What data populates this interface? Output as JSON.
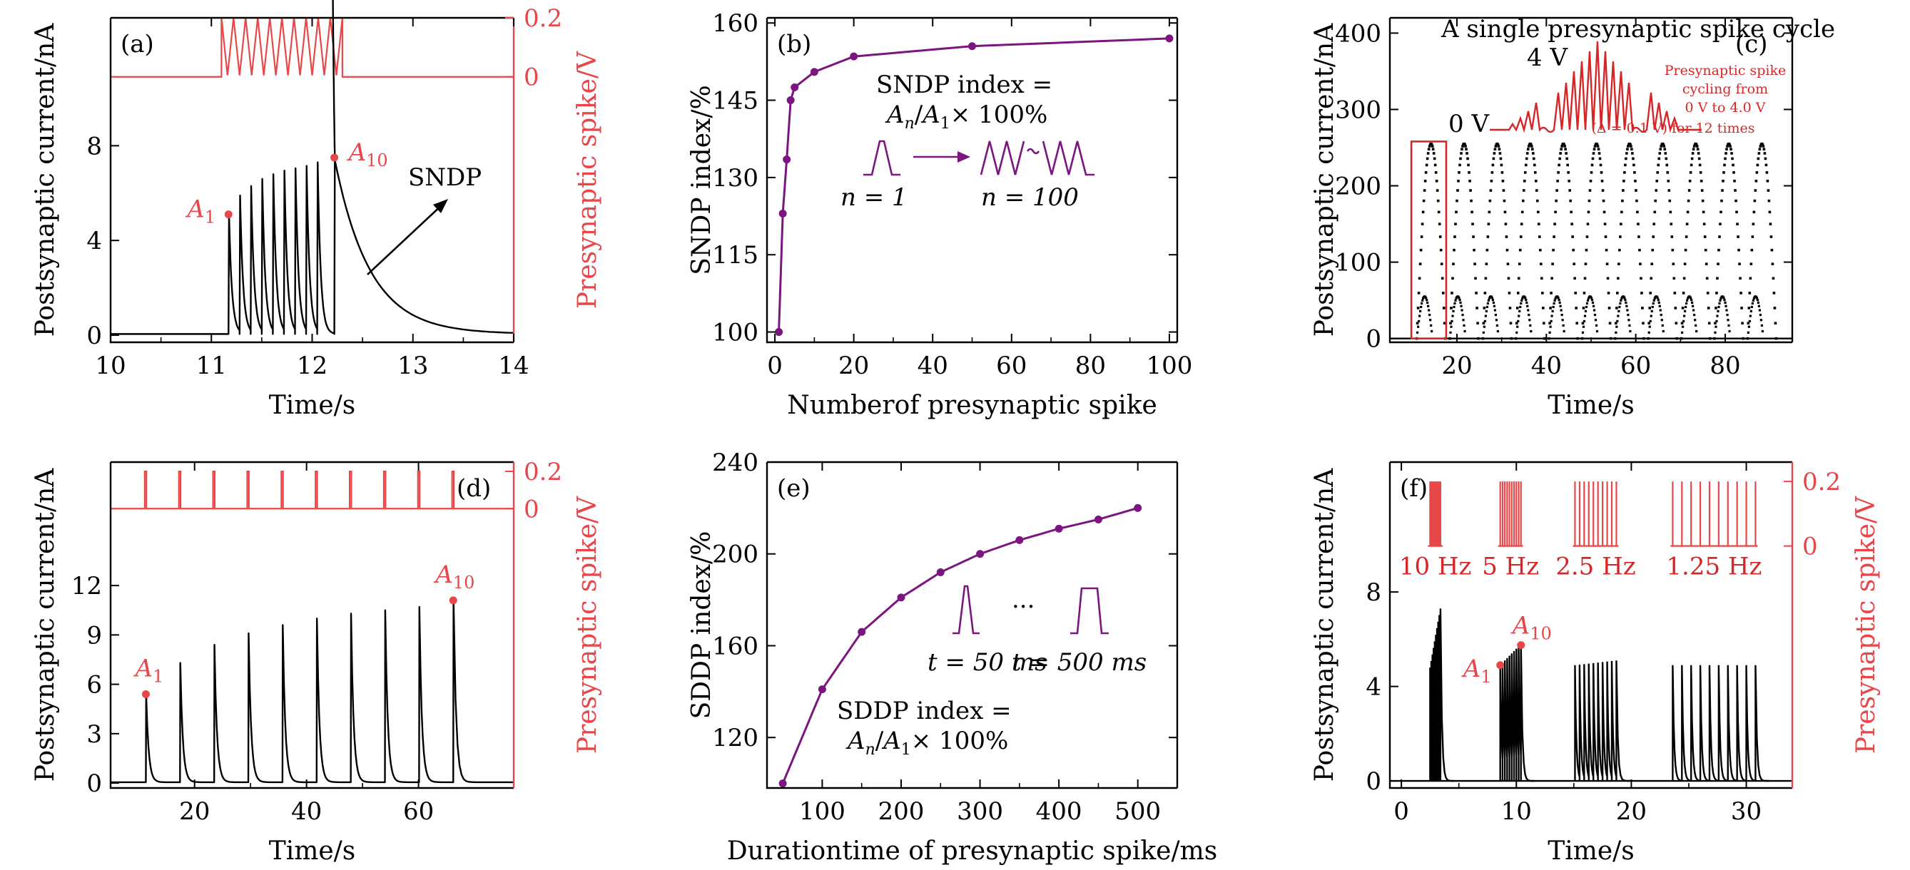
{
  "colors": {
    "black": "#000000",
    "red": "#e8474a",
    "annotation_red": "#d62728",
    "purple": "#7b1580"
  },
  "chart_data": [
    {
      "id": "a",
      "type": "line",
      "panel_label": "(a)",
      "xlabel": "Time/s",
      "ylabel": "Postsynaptic current/nA",
      "y2label": "Presynaptic spike/V",
      "xlim": [
        10,
        14
      ],
      "ylim": [
        -0.3,
        13.4
      ],
      "y2lim": [
        -0.9,
        0.2
      ],
      "xticks": [
        "10",
        "11",
        "12",
        "13",
        "14"
      ],
      "yticks": [
        "0",
        "4",
        "8"
      ],
      "y2ticks": [
        "0",
        "0.2"
      ],
      "spike_times": [
        11.17,
        11.28,
        11.39,
        11.5,
        11.61,
        11.72,
        11.83,
        11.94,
        12.05,
        12.22
      ],
      "peak_values": [
        5.1,
        5.9,
        6.3,
        6.6,
        6.8,
        6.95,
        7.05,
        7.15,
        7.3,
        7.5
      ],
      "pulse_amplitude_V": 0.2,
      "pulse_window_s": [
        11.1,
        12.3
      ],
      "points": [
        {
          "label": "A",
          "sub": "1",
          "x": 11.17,
          "y": 5.1
        },
        {
          "label": "A",
          "sub": "10",
          "x": 12.22,
          "y": 7.5
        }
      ],
      "annotation": "SNDP"
    },
    {
      "id": "b",
      "type": "line",
      "panel_label": "(b)",
      "xlabel": "Numberof presynaptic spike",
      "ylabel": "SNDP index/%",
      "xlim": [
        -2,
        102
      ],
      "ylim": [
        98,
        161
      ],
      "xticks": [
        "0",
        "20",
        "40",
        "60",
        "80",
        "100"
      ],
      "yticks": [
        "100",
        "115",
        "130",
        "145",
        "160"
      ],
      "series": [
        {
          "x": [
            1,
            2,
            3,
            4,
            5,
            10,
            20,
            50,
            100
          ],
          "y": [
            100,
            123,
            133.5,
            145,
            147.5,
            150.5,
            153.5,
            155.5,
            157
          ]
        }
      ],
      "annotation_line1": "SNDP index =",
      "annotation_line2": "A",
      "annotation_line2_sub": "n",
      "annotation_line2_mid": "/A",
      "annotation_line2_sub2": "1",
      "annotation_line2_tail": "× 100%",
      "label_n1": "n = 1",
      "label_n100": "n = 100"
    },
    {
      "id": "c",
      "type": "line",
      "panel_label": "(c)",
      "xlabel": "Time/s",
      "ylabel": "Postsynaptic current/nA",
      "xlim": [
        5,
        95
      ],
      "ylim": [
        -5,
        420
      ],
      "xticks": [
        "20",
        "40",
        "60",
        "80"
      ],
      "yticks": [
        "0",
        "100",
        "200",
        "300",
        "400"
      ],
      "cycle_starts": [
        11,
        18.4,
        25.8,
        33.2,
        40.6,
        48,
        55.4,
        62.8,
        70.2,
        77.6,
        85
      ],
      "cycle_peak": 255,
      "inset_title": "A single presynaptic spike cycle",
      "inset_label_4v": "4 V",
      "inset_label_0v": "0 V",
      "inset_note": [
        "Presynaptic spike",
        "cycling from",
        "0 V to 4.0 V",
        "(Δ = 0.1 V) for 12 times"
      ]
    },
    {
      "id": "d",
      "type": "line",
      "panel_label": "(d)",
      "xlabel": "Time/s",
      "ylabel": "Postsynaptic current/nA",
      "y2label": "Presynaptic spike/V",
      "xlim": [
        5,
        77
      ],
      "ylim": [
        -0.3,
        19.5
      ],
      "y2lim": [
        -1.5,
        0.25
      ],
      "xticks": [
        "20",
        "40",
        "60"
      ],
      "yticks": [
        "0",
        "3",
        "6",
        "9",
        "12"
      ],
      "y2ticks": [
        "0",
        "0.2"
      ],
      "spike_times": [
        11.3,
        17.4,
        23.5,
        29.6,
        35.7,
        41.8,
        47.9,
        54,
        60.1,
        66.2
      ],
      "peak_values": [
        5.4,
        7.3,
        8.4,
        9.1,
        9.6,
        10,
        10.3,
        10.5,
        10.7,
        11.1
      ],
      "points": [
        {
          "label": "A",
          "sub": "1",
          "x": 11.3,
          "y": 5.4
        },
        {
          "label": "A",
          "sub": "10",
          "x": 66.2,
          "y": 11.1
        }
      ]
    },
    {
      "id": "e",
      "type": "line",
      "panel_label": "(e)",
      "xlabel": "Durationtime of presynaptic spike/ms",
      "ylabel": "SDDP index/%",
      "xlim": [
        30,
        550
      ],
      "ylim": [
        98,
        240
      ],
      "xticks": [
        "100",
        "200",
        "300",
        "400",
        "500"
      ],
      "yticks": [
        "120",
        "160",
        "200",
        "240"
      ],
      "series": [
        {
          "x": [
            50,
            100,
            150,
            200,
            250,
            300,
            350,
            400,
            450,
            500
          ],
          "y": [
            100,
            141,
            166,
            181,
            192,
            200,
            206,
            211,
            215,
            220
          ]
        }
      ],
      "annotation_line1": "SDDP index =",
      "label_t50": "t = 50 ms",
      "label_t500": "t = 500 ms",
      "ellipsis": "···"
    },
    {
      "id": "f",
      "type": "line",
      "panel_label": "(f)",
      "xlabel": "Time/s",
      "ylabel": "Postsynaptic current/nA",
      "y2label": "Presynaptic spike/V",
      "xlim": [
        -1,
        34
      ],
      "ylim": [
        -0.3,
        13.5
      ],
      "y2lim": [
        -0.75,
        0.26
      ],
      "xticks": [
        "0",
        "10",
        "20",
        "30"
      ],
      "yticks": [
        "0",
        "4",
        "8"
      ],
      "y2ticks": [
        "0",
        "0.2"
      ],
      "groups": [
        {
          "freq": "10 Hz",
          "start": 2.5,
          "period": 0.1,
          "peak_start": 4.8,
          "peak_end": 7.3
        },
        {
          "freq": "5 Hz",
          "start": 8.6,
          "period": 0.2,
          "peak_start": 4.9,
          "peak_end": 5.8
        },
        {
          "freq": "2.5 Hz",
          "start": 15.1,
          "period": 0.4,
          "peak_start": 4.9,
          "peak_end": 5.1
        },
        {
          "freq": "1.25 Hz",
          "start": 23.6,
          "period": 0.8,
          "peak_start": 4.9,
          "peak_end": 4.9
        }
      ],
      "points": [
        {
          "label": "A",
          "sub": "1",
          "x": 8.6,
          "y": 4.9
        },
        {
          "label": "A",
          "sub": "10",
          "x": 10.4,
          "y": 5.75
        }
      ]
    }
  ]
}
